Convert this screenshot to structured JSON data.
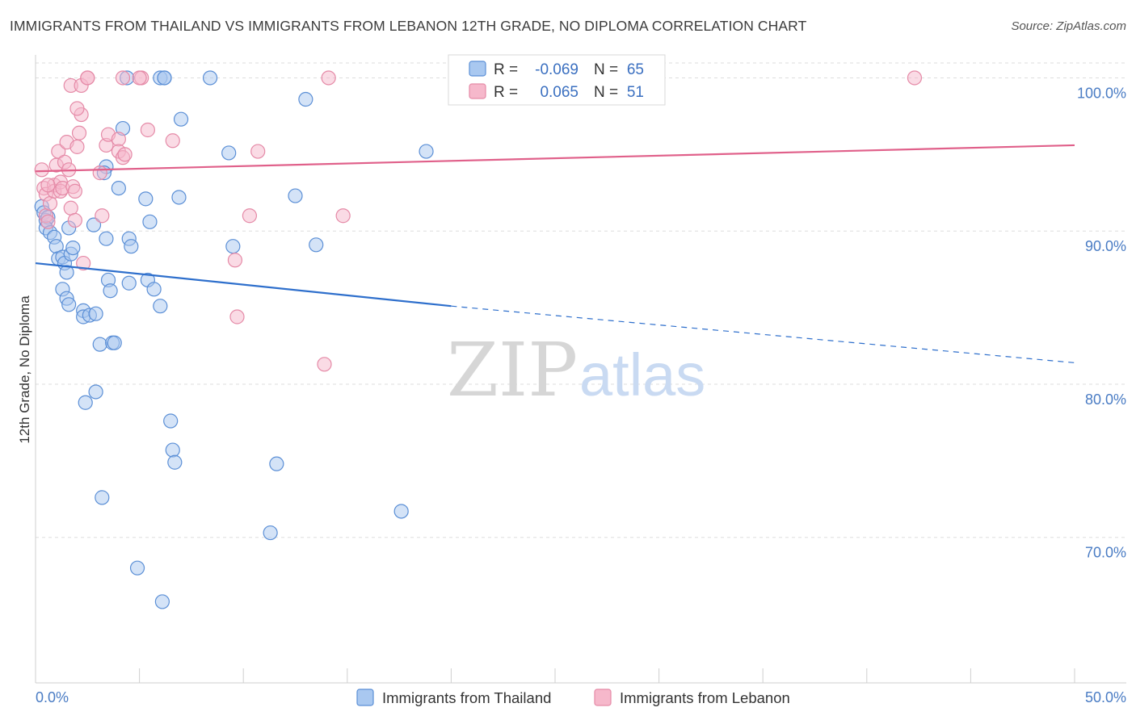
{
  "title": "IMMIGRANTS FROM THAILAND VS IMMIGRANTS FROM LEBANON 12TH GRADE, NO DIPLOMA CORRELATION CHART",
  "source": "Source: ZipAtlas.com",
  "watermark": {
    "zip": "ZIP",
    "atlas": "atlas"
  },
  "colors": {
    "thailand_fill": "#a9c8f0",
    "thailand_stroke": "#5b8fd6",
    "thailand_line": "#2e6fcc",
    "lebanon_fill": "#f6b8cb",
    "lebanon_stroke": "#e58aa7",
    "lebanon_line": "#e0608a",
    "tick_label": "#4a7cc4",
    "grid": "#dddddd"
  },
  "legend": {
    "thailand": {
      "r_label": "R =",
      "r_value": "-0.069",
      "n_label": "N =",
      "n_value": "65"
    },
    "lebanon": {
      "r_label": "R =",
      "r_value": "0.065",
      "n_label": "N =",
      "n_value": "51"
    }
  },
  "chart_data": {
    "type": "scatter",
    "title": "IMMIGRANTS FROM THAILAND VS IMMIGRANTS FROM LEBANON 12TH GRADE, NO DIPLOMA CORRELATION CHART",
    "xlabel": "",
    "ylabel": "12th Grade, No Diploma",
    "xlim": [
      0,
      50
    ],
    "ylim": [
      60.5,
      101.5
    ],
    "x_tick_labels": [
      "0.0%",
      "50.0%"
    ],
    "y_ticks": [
      70,
      80,
      90,
      100
    ],
    "y_tick_labels": [
      "70.0%",
      "80.0%",
      "90.0%",
      "100.0%"
    ],
    "grid": true,
    "legend_position": "top-center",
    "series": [
      {
        "name": "Immigrants from Thailand",
        "r": -0.069,
        "n": 65,
        "trend": {
          "x": [
            0,
            20,
            50
          ],
          "y": [
            87.9,
            85.1,
            81.4
          ],
          "solid_until": 20
        },
        "points": [
          [
            0.3,
            91.6
          ],
          [
            0.4,
            91.2
          ],
          [
            0.5,
            90.7
          ],
          [
            0.6,
            90.9
          ],
          [
            0.5,
            90.2
          ],
          [
            0.7,
            89.9
          ],
          [
            0.9,
            89.6
          ],
          [
            1.0,
            89.0
          ],
          [
            1.1,
            88.2
          ],
          [
            1.3,
            88.3
          ],
          [
            1.4,
            87.9
          ],
          [
            1.5,
            87.3
          ],
          [
            1.7,
            88.5
          ],
          [
            1.8,
            88.9
          ],
          [
            1.6,
            90.2
          ],
          [
            2.8,
            90.4
          ],
          [
            1.3,
            86.2
          ],
          [
            1.5,
            85.6
          ],
          [
            1.6,
            85.2
          ],
          [
            2.3,
            84.8
          ],
          [
            2.3,
            84.4
          ],
          [
            2.6,
            84.5
          ],
          [
            2.9,
            84.6
          ],
          [
            3.5,
            86.8
          ],
          [
            3.6,
            86.1
          ],
          [
            4.5,
            86.6
          ],
          [
            5.4,
            86.8
          ],
          [
            5.7,
            86.2
          ],
          [
            6.0,
            85.1
          ],
          [
            3.1,
            82.6
          ],
          [
            3.7,
            82.7
          ],
          [
            3.8,
            82.7
          ],
          [
            2.4,
            78.8
          ],
          [
            2.9,
            79.5
          ],
          [
            6.5,
            77.6
          ],
          [
            6.6,
            75.7
          ],
          [
            6.7,
            74.9
          ],
          [
            11.6,
            74.8
          ],
          [
            3.2,
            72.6
          ],
          [
            17.6,
            71.7
          ],
          [
            11.3,
            70.3
          ],
          [
            4.9,
            68.0
          ],
          [
            6.1,
            65.8
          ],
          [
            3.4,
            89.5
          ],
          [
            4.5,
            89.5
          ],
          [
            4.6,
            89.0
          ],
          [
            5.3,
            92.1
          ],
          [
            5.5,
            90.6
          ],
          [
            6.9,
            92.2
          ],
          [
            9.5,
            89.0
          ],
          [
            9.3,
            95.1
          ],
          [
            12.5,
            92.3
          ],
          [
            13.5,
            89.1
          ],
          [
            13.0,
            98.6
          ],
          [
            18.8,
            95.2
          ],
          [
            4.2,
            96.7
          ],
          [
            3.4,
            94.2
          ],
          [
            3.3,
            93.8
          ],
          [
            4.0,
            92.8
          ],
          [
            7.0,
            97.3
          ],
          [
            4.4,
            100.0
          ],
          [
            6.0,
            100.0
          ],
          [
            6.2,
            100.0
          ],
          [
            8.4,
            100.0
          ],
          [
            6.2,
            100.0
          ]
        ]
      },
      {
        "name": "Immigrants from Lebanon",
        "r": 0.065,
        "n": 51,
        "trend": {
          "x": [
            0,
            50
          ],
          "y": [
            93.9,
            95.6
          ],
          "solid_until": 50
        },
        "points": [
          [
            0.3,
            94.0
          ],
          [
            0.4,
            92.8
          ],
          [
            0.5,
            92.4
          ],
          [
            0.5,
            91.0
          ],
          [
            0.6,
            90.6
          ],
          [
            0.7,
            91.8
          ],
          [
            0.9,
            93.0
          ],
          [
            0.9,
            92.6
          ],
          [
            1.0,
            94.3
          ],
          [
            1.1,
            95.2
          ],
          [
            1.2,
            93.2
          ],
          [
            1.2,
            92.6
          ],
          [
            1.3,
            92.8
          ],
          [
            1.4,
            94.5
          ],
          [
            1.5,
            95.8
          ],
          [
            1.6,
            94.0
          ],
          [
            1.7,
            91.5
          ],
          [
            1.8,
            92.9
          ],
          [
            1.9,
            92.6
          ],
          [
            2.0,
            95.5
          ],
          [
            2.1,
            96.4
          ],
          [
            2.2,
            97.6
          ],
          [
            2.0,
            98.0
          ],
          [
            1.7,
            99.5
          ],
          [
            2.2,
            99.5
          ],
          [
            2.5,
            100.0
          ],
          [
            2.5,
            100.0
          ],
          [
            3.1,
            93.8
          ],
          [
            3.2,
            91.0
          ],
          [
            3.4,
            95.6
          ],
          [
            3.5,
            96.3
          ],
          [
            4.0,
            96.0
          ],
          [
            4.0,
            95.2
          ],
          [
            4.2,
            94.8
          ],
          [
            4.3,
            95.0
          ],
          [
            5.4,
            96.6
          ],
          [
            6.6,
            95.9
          ],
          [
            4.2,
            100.0
          ],
          [
            5.1,
            100.0
          ],
          [
            5.0,
            100.0
          ],
          [
            10.3,
            91.0
          ],
          [
            9.6,
            88.1
          ],
          [
            10.7,
            95.2
          ],
          [
            9.7,
            84.4
          ],
          [
            13.9,
            81.3
          ],
          [
            14.8,
            91.0
          ],
          [
            14.1,
            100.0
          ],
          [
            42.3,
            100.0
          ],
          [
            2.3,
            87.9
          ],
          [
            1.9,
            90.7
          ],
          [
            0.6,
            93.0
          ]
        ]
      }
    ]
  },
  "bottom_legend": [
    "Immigrants from Thailand",
    "Immigrants from Lebanon"
  ]
}
